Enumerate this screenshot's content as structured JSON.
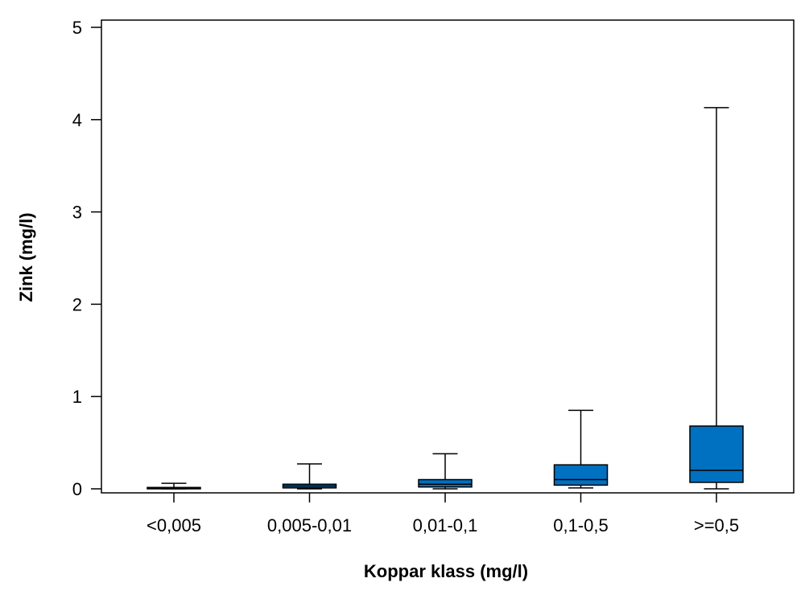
{
  "chart_data": {
    "type": "boxplot",
    "title": "",
    "xlabel": "Koppar klass (mg/l)",
    "ylabel": "Zink (mg/l)",
    "ylim": [
      0,
      5
    ],
    "yticks": [
      0,
      1,
      2,
      3,
      4,
      5
    ],
    "grid": false,
    "legend": "none",
    "box_color": "#0070C0",
    "categories": [
      "<0,005",
      "0,005-0,01",
      "0,01-0,1",
      "0,1-0,5",
      ">=0,5"
    ],
    "boxes": [
      {
        "min": 0.0,
        "q1": 0.0,
        "median": 0.005,
        "q3": 0.015,
        "max": 0.06
      },
      {
        "min": 0.0,
        "q1": 0.01,
        "median": 0.03,
        "q3": 0.05,
        "max": 0.27
      },
      {
        "min": 0.0,
        "q1": 0.02,
        "median": 0.05,
        "q3": 0.1,
        "max": 0.38
      },
      {
        "min": 0.01,
        "q1": 0.04,
        "median": 0.1,
        "q3": 0.26,
        "max": 0.85
      },
      {
        "min": 0.0,
        "q1": 0.07,
        "median": 0.2,
        "q3": 0.68,
        "max": 4.13
      }
    ]
  }
}
